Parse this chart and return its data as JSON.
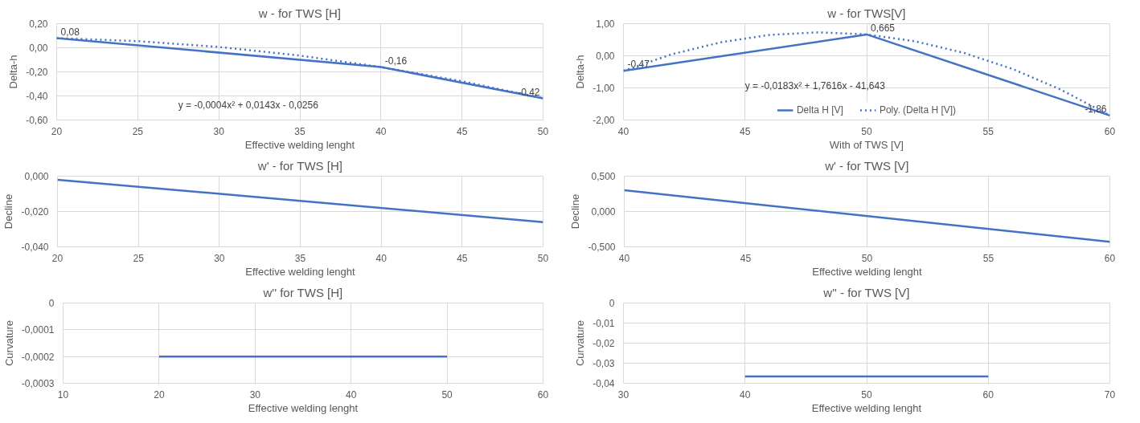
{
  "chart_data": [
    {
      "type": "line",
      "title": "w - for TWS [H]",
      "xlabel": "Effective welding lenght",
      "ylabel": "Delta-h",
      "xlim": [
        20,
        50
      ],
      "xticks": [
        20,
        25,
        30,
        35,
        40,
        45,
        50
      ],
      "ylim": [
        -0.6,
        0.2
      ],
      "yticks": [
        {
          "value": -0.6,
          "label": "-0,60"
        },
        {
          "value": -0.4,
          "label": "-0,40"
        },
        {
          "value": -0.2,
          "label": "-0,20"
        },
        {
          "value": 0,
          "label": "0,00"
        },
        {
          "value": 0.2,
          "label": "0,20"
        }
      ],
      "grid": true,
      "legend": false,
      "annotations": [
        "y = -0,0004x² + 0,0143x - 0,0256"
      ],
      "series": [
        {
          "color": "#4472c4",
          "x": [
            20,
            40,
            50
          ],
          "values": [
            0.08,
            -0.16,
            -0.42
          ],
          "value_labels": [
            "0,08",
            "-0,16",
            "-0,42"
          ]
        },
        {
          "type": "line",
          "line_style": "dotted",
          "color": "#4472c4",
          "x": [
            20,
            25,
            30,
            35,
            40,
            45,
            50
          ],
          "values": [
            0.08,
            0.055,
            0.007,
            -0.065,
            -0.16,
            -0.278,
            -0.42
          ]
        }
      ]
    },
    {
      "type": "line",
      "title": "w - for TWS[V]",
      "xlabel": "With of TWS [V]",
      "ylabel": "Delta-h",
      "xlim": [
        40,
        60
      ],
      "xticks": [
        40,
        45,
        50,
        55,
        60
      ],
      "ylim": [
        -2,
        1
      ],
      "yticks": [
        {
          "value": -2,
          "label": "-2,00"
        },
        {
          "value": -1,
          "label": "-1,00"
        },
        {
          "value": 0,
          "label": "0,00"
        },
        {
          "value": 1,
          "label": "1,00"
        }
      ],
      "grid": true,
      "legend": "bottom",
      "annotations": [
        "y = -0,0183x² + 1,7616x - 41,643"
      ],
      "series": [
        {
          "name": "Delta H [V]",
          "color": "#4472c4",
          "x": [
            40,
            50,
            60
          ],
          "values": [
            -0.47,
            0.665,
            -1.86
          ],
          "value_labels": [
            "-0,47",
            "0,665",
            "-1,86"
          ]
        },
        {
          "name": "Poly. (Delta H [V])",
          "type": "line",
          "line_style": "dotted",
          "color": "#4472c4",
          "x": [
            40,
            42,
            44,
            46,
            48,
            50,
            52,
            54,
            56,
            58,
            60
          ],
          "values": [
            -0.47,
            0.05,
            0.42,
            0.65,
            0.73,
            0.665,
            0.45,
            0.09,
            -0.41,
            -1.06,
            -1.86
          ]
        }
      ]
    },
    {
      "type": "line",
      "title": "w' - for TWS [H]",
      "xlabel": "Effective welding lenght",
      "ylabel": "Decline",
      "xlim": [
        20,
        50
      ],
      "xticks": [
        20,
        25,
        30,
        35,
        40,
        45,
        50
      ],
      "ylim": [
        -0.04,
        0
      ],
      "yticks": [
        {
          "value": -0.04,
          "label": "-0,040"
        },
        {
          "value": -0.02,
          "label": "-0,020"
        },
        {
          "value": 0,
          "label": "0,000"
        }
      ],
      "grid": true,
      "legend": false,
      "series": [
        {
          "color": "#4472c4",
          "x": [
            20,
            50
          ],
          "values": [
            -0.002,
            -0.026
          ]
        }
      ]
    },
    {
      "type": "line",
      "title": "w' - for TWS [V]",
      "xlabel": "Effective welding lenght",
      "ylabel": "Decline",
      "xlim": [
        40,
        60
      ],
      "xticks": [
        40,
        45,
        50,
        55,
        60
      ],
      "ylim": [
        -0.5,
        0.5
      ],
      "yticks": [
        {
          "value": -0.5,
          "label": "-0,500"
        },
        {
          "value": 0,
          "label": "0,000"
        },
        {
          "value": 0.5,
          "label": "0,500"
        }
      ],
      "grid": true,
      "legend": false,
      "series": [
        {
          "color": "#4472c4",
          "x": [
            40,
            60
          ],
          "values": [
            0.3,
            -0.43
          ]
        }
      ]
    },
    {
      "type": "line",
      "title": "w'' for TWS [H]",
      "xlabel": "Effective welding lenght",
      "ylabel": "Curvature",
      "xlim": [
        10,
        60
      ],
      "xticks": [
        10,
        20,
        30,
        40,
        50,
        60
      ],
      "ylim": [
        -0.0003,
        0
      ],
      "yticks": [
        {
          "value": -0.0003,
          "label": "-0,0003"
        },
        {
          "value": -0.0002,
          "label": "-0,0002"
        },
        {
          "value": -0.0001,
          "label": "-0,0001"
        },
        0
      ],
      "grid": true,
      "legend": false,
      "series": [
        {
          "color": "#4472c4",
          "x": [
            20,
            50
          ],
          "values": [
            -0.0002,
            -0.0002
          ]
        }
      ]
    },
    {
      "type": "line",
      "title": "w'' - for TWS [V]",
      "xlabel": "Effective welding lenght",
      "ylabel": "Curvature",
      "xlim": [
        30,
        70
      ],
      "xticks": [
        30,
        40,
        50,
        60,
        70
      ],
      "ylim": [
        -0.04,
        0
      ],
      "yticks": [
        {
          "value": -0.04,
          "label": "-0,04"
        },
        {
          "value": -0.03,
          "label": "-0,03"
        },
        {
          "value": -0.02,
          "label": "-0,02"
        },
        {
          "value": -0.01,
          "label": "-0,01"
        },
        0
      ],
      "grid": true,
      "legend": false,
      "series": [
        {
          "color": "#4472c4",
          "x": [
            40,
            60
          ],
          "values": [
            -0.0366,
            -0.0366
          ]
        }
      ]
    }
  ]
}
